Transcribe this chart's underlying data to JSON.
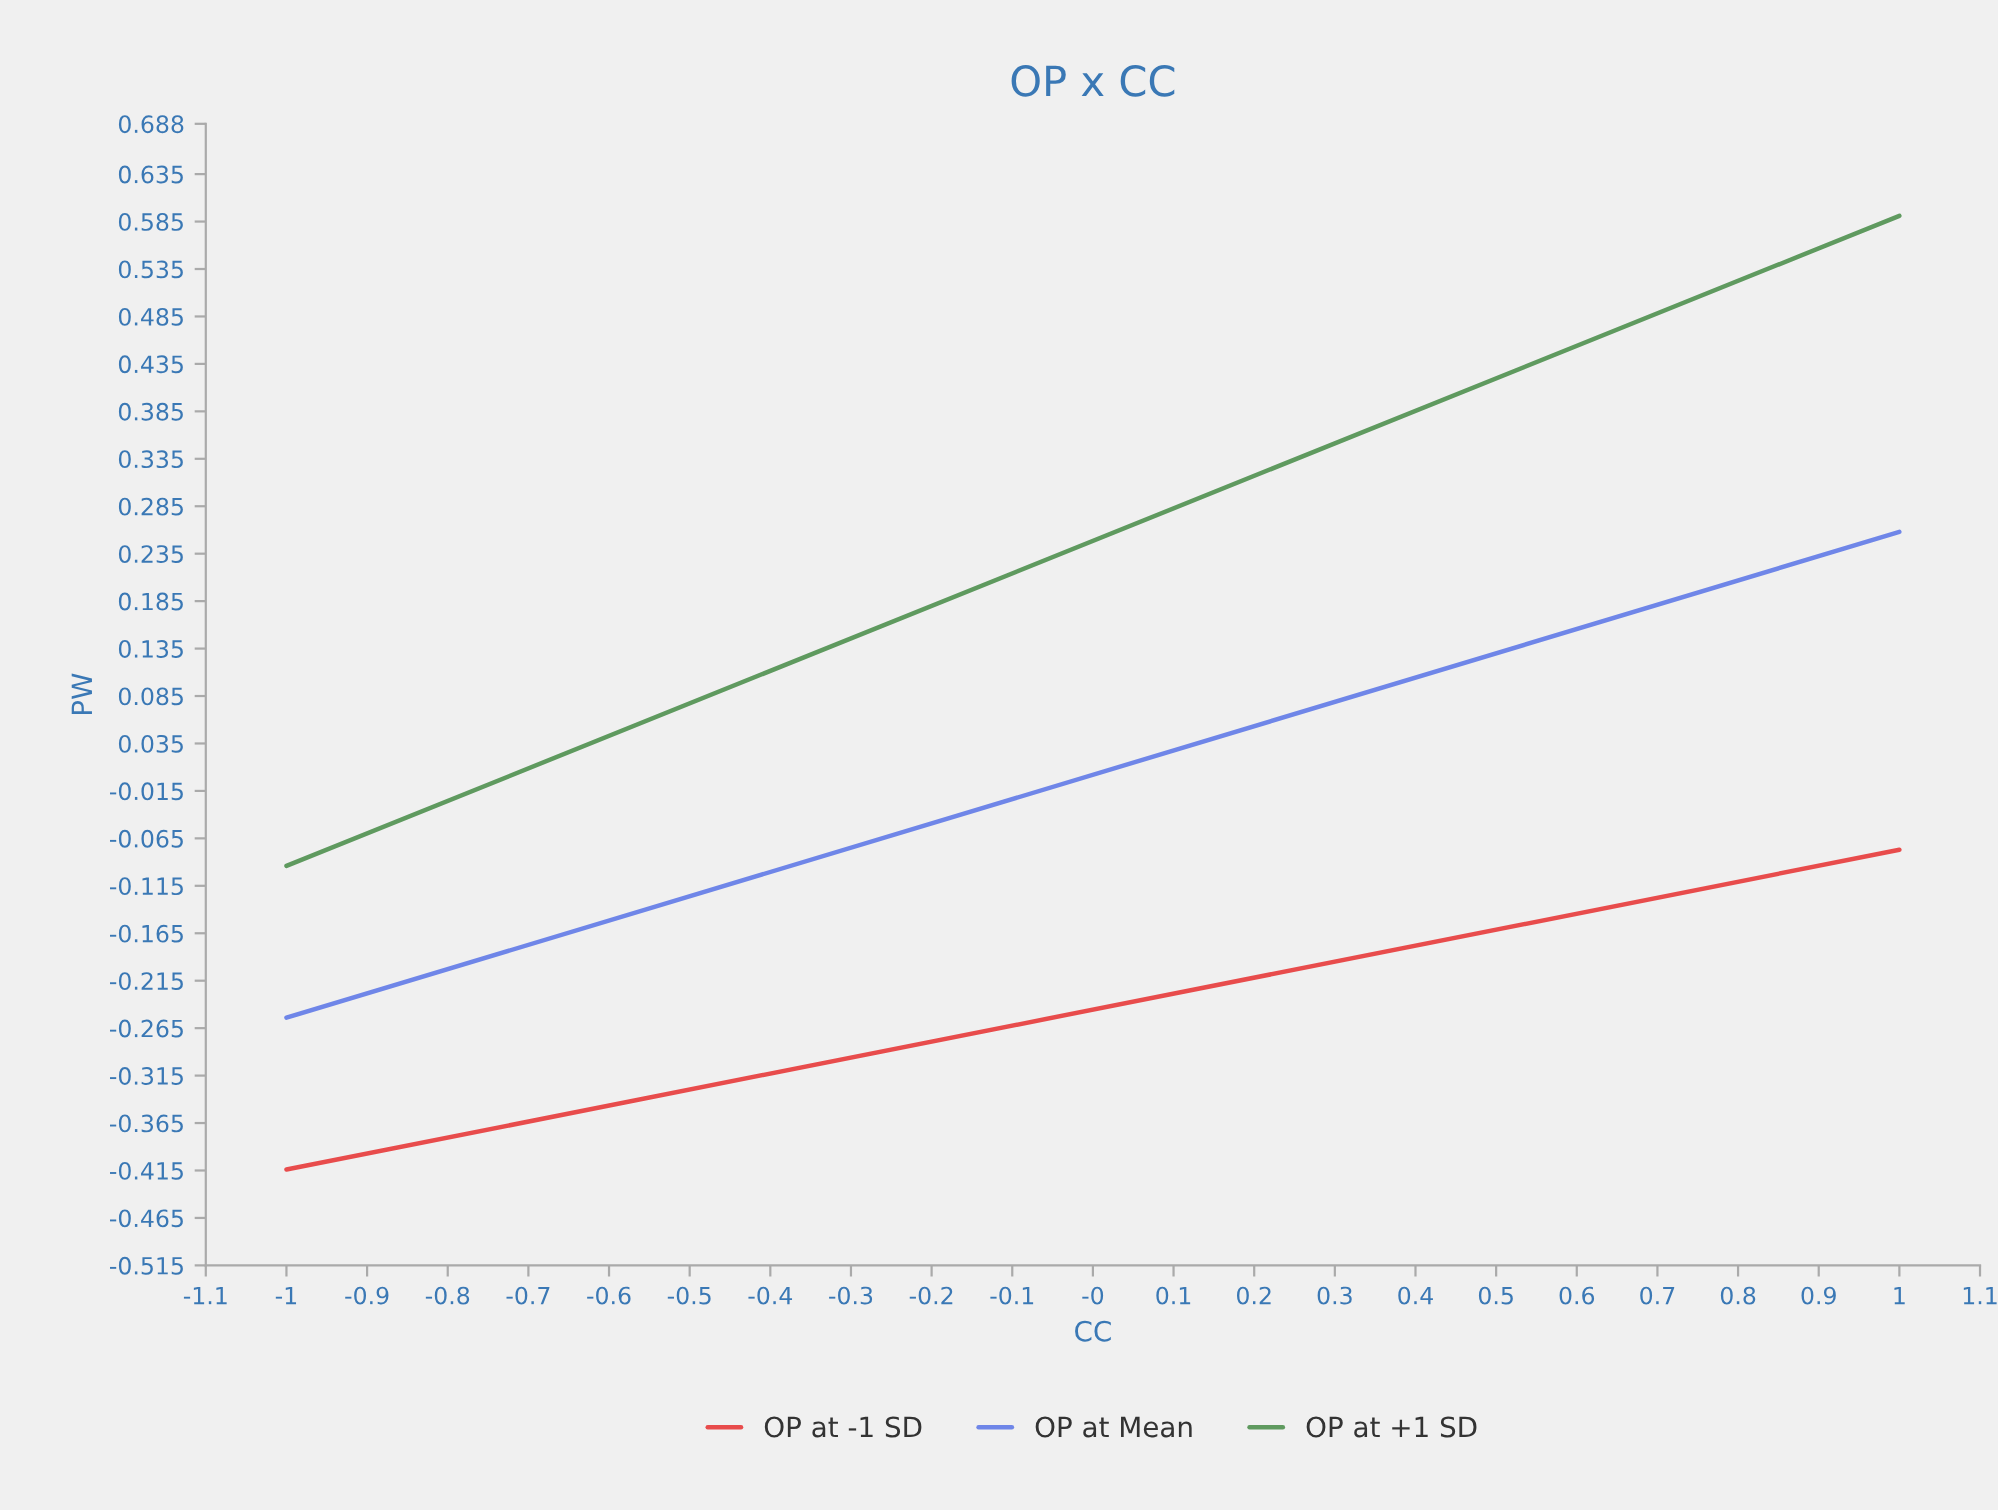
{
  "chart_data": {
    "type": "line",
    "title": "OP x CC",
    "xlabel": "CC",
    "ylabel": "PW",
    "x": [
      -1,
      1
    ],
    "series": [
      {
        "name": "OP at -1 SD",
        "color": "#e84c4c",
        "values": [
          -0.414,
          -0.077
        ]
      },
      {
        "name": "OP at Mean",
        "color": "#6f86e8",
        "values": [
          -0.254,
          0.258
        ]
      },
      {
        "name": "OP at +1 SD",
        "color": "#5f9a5f",
        "values": [
          -0.094,
          0.591
        ]
      }
    ],
    "xlim": [
      -1.1,
      1.1
    ],
    "xticks": [
      -1.1,
      -1,
      -0.9,
      -0.8,
      -0.7,
      -0.6,
      -0.5,
      -0.4,
      -0.3,
      -0.2,
      -0.1,
      {
        "value": 0,
        "label": "-0"
      },
      0.1,
      0.2,
      0.3,
      0.4,
      0.5,
      0.6,
      0.7,
      0.8,
      0.9,
      1,
      1.1
    ],
    "ylim": [
      -0.515,
      0.688
    ],
    "yticks": [
      -0.515,
      -0.465,
      -0.415,
      -0.365,
      -0.315,
      -0.265,
      -0.215,
      -0.165,
      -0.115,
      -0.065,
      -0.015,
      0.035,
      0.085,
      0.135,
      0.185,
      0.235,
      0.285,
      0.335,
      0.385,
      0.435,
      0.485,
      0.535,
      0.585,
      0.635,
      0.688
    ],
    "grid": false,
    "legend": "bottom",
    "marker": "none",
    "line_style": "solid"
  }
}
